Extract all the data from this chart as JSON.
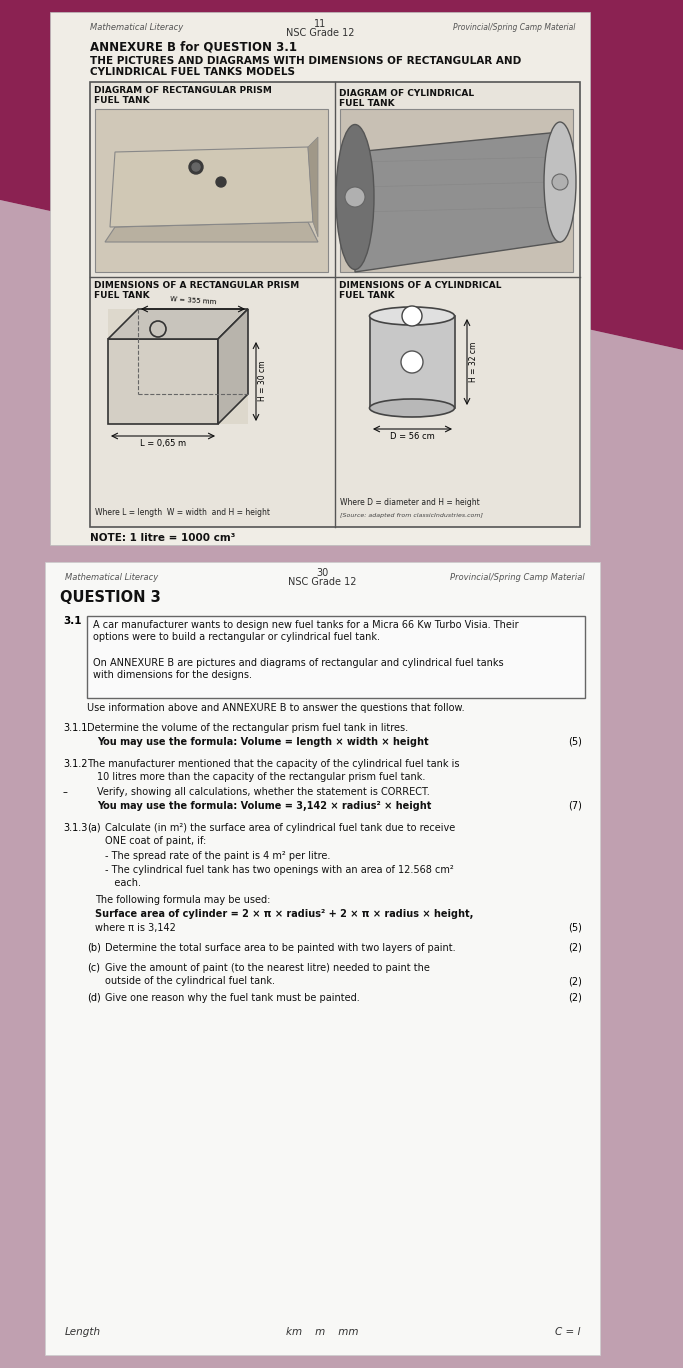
{
  "bg_color_top": "#8B2252",
  "bg_color_bottom": "#c8b0b8",
  "page1_bg": "#f0ede8",
  "page2_bg": "#f8f8f8",
  "header1_left": "Mathematical Literacy",
  "header1_center_num": "11",
  "header1_center_text": "NSC Grade 12",
  "header1_right": "Provincial/Spring Camp Material",
  "annexure_title": "ANNEXURE B for QUESTION 3.1",
  "main_title_line1": "THE PICTURES AND DIAGRAMS WITH DIMENSIONS OF RECTANGULAR AND",
  "main_title_line2": "CYLINDRICAL FUEL TANKS MODELS",
  "box1_title_line1": "DIAGRAM OF RECTANGULAR PRISM",
  "box1_title_line2": "FUEL TANK",
  "box2_title_line1": "DIAGRAM OF CYLINDRICAL",
  "box2_title_line2": "FUEL TANK",
  "box3_title_line1": "DIMENSIONS OF A RECTANGULAR PRISM",
  "box3_title_line2": "FUEL TANK",
  "box4_title_line1": "DIMENSIONS OF A CYLINDRICAL",
  "box4_title_line2": "FUEL TANK",
  "rect_L": "L = 0,65 m",
  "rect_W": "W = 355 mm",
  "rect_H": "H = 30 cm",
  "rect_legend": "Where L = length  W = width  and H = height",
  "cyl_D": "D = 56 cm",
  "cyl_H": "H = 32 cm",
  "cyl_legend_line1": "Where D = diameter and H = height",
  "cyl_source": "[Source: adapted from classicIndustries.com]",
  "note": "NOTE: 1 litre = 1000 cm³",
  "header2_left": "Mathematical Literacy",
  "header2_center_num": "30",
  "header2_center_text": "NSC Grade 12",
  "header2_right": "Provincial/Spring Camp Material",
  "q3_title": "QUESTION 3",
  "q31_box_lines": [
    "A car manufacturer wants to design new fuel tanks for a Micra 66 Kw Turbo Visia. Their",
    "options were to build a rectangular or cylindrical fuel tank.",
    "",
    "On ANNEXURE B are pictures and diagrams of rectangular and cylindrical fuel tanks",
    "with dimensions for the designs."
  ],
  "q31_intro": "Use information above and ANNEXURE B to answer the questions that follow.",
  "q311_label": "3.1.1",
  "q311_text": "Determine the volume of the rectangular prism fuel tank in litres.",
  "q311_formula": "You may use the formula: Volume = length × width × height",
  "q311_marks": "(5)",
  "q312_label": "3.1.2",
  "q312_line1": "The manufacturer mentioned that the capacity of the cylindrical fuel tank is",
  "q312_line2": "10 litres more than the capacity of the rectangular prism fuel tank.",
  "q312_dash": "–",
  "q312_verify": "Verify, showing all calculations, whether the statement is CORRECT.",
  "q312_formula": "You may use the formula: Volume = 3,142 × radius² × height",
  "q312_marks": "(7)",
  "q313_label": "3.1.3",
  "q313a_label": "(a)",
  "q313a_line1": "Calculate (in m²) the surface area of cylindrical fuel tank due to receive",
  "q313a_line2": "ONE coat of paint, if:",
  "q313a_b1": "- The spread rate of the paint is 4 m² per litre.",
  "q313a_b2a": "- The cylindrical fuel tank has two openings with an area of 12.568 cm²",
  "q313a_b2b": "   each.",
  "q313a_formula_intro": "The following formula may be used:",
  "q313a_formula_bold": "Surface area of cylinder = 2 × π × radius² + 2 × π × radius × height,",
  "q313a_formula_pi": "where π is 3,142",
  "q313a_marks": "(5)",
  "q313b_label": "(b)",
  "q313b_text": "Determine the total surface area to be painted with two layers of paint.",
  "q313b_marks": "(2)",
  "q313c_label": "(c)",
  "q313c_line1": "Give the amount of paint (to the nearest litre) needed to paint the",
  "q313c_line2": "outside of the cylindrical fuel tank.",
  "q313c_marks": "(2)",
  "q313d_label": "(d)",
  "q313d_text": "Give one reason why the fuel tank must be painted.",
  "q313d_marks": "(2)",
  "footer_left": "Length",
  "footer_mid": "km    m    mm",
  "footer_right": "C = l"
}
